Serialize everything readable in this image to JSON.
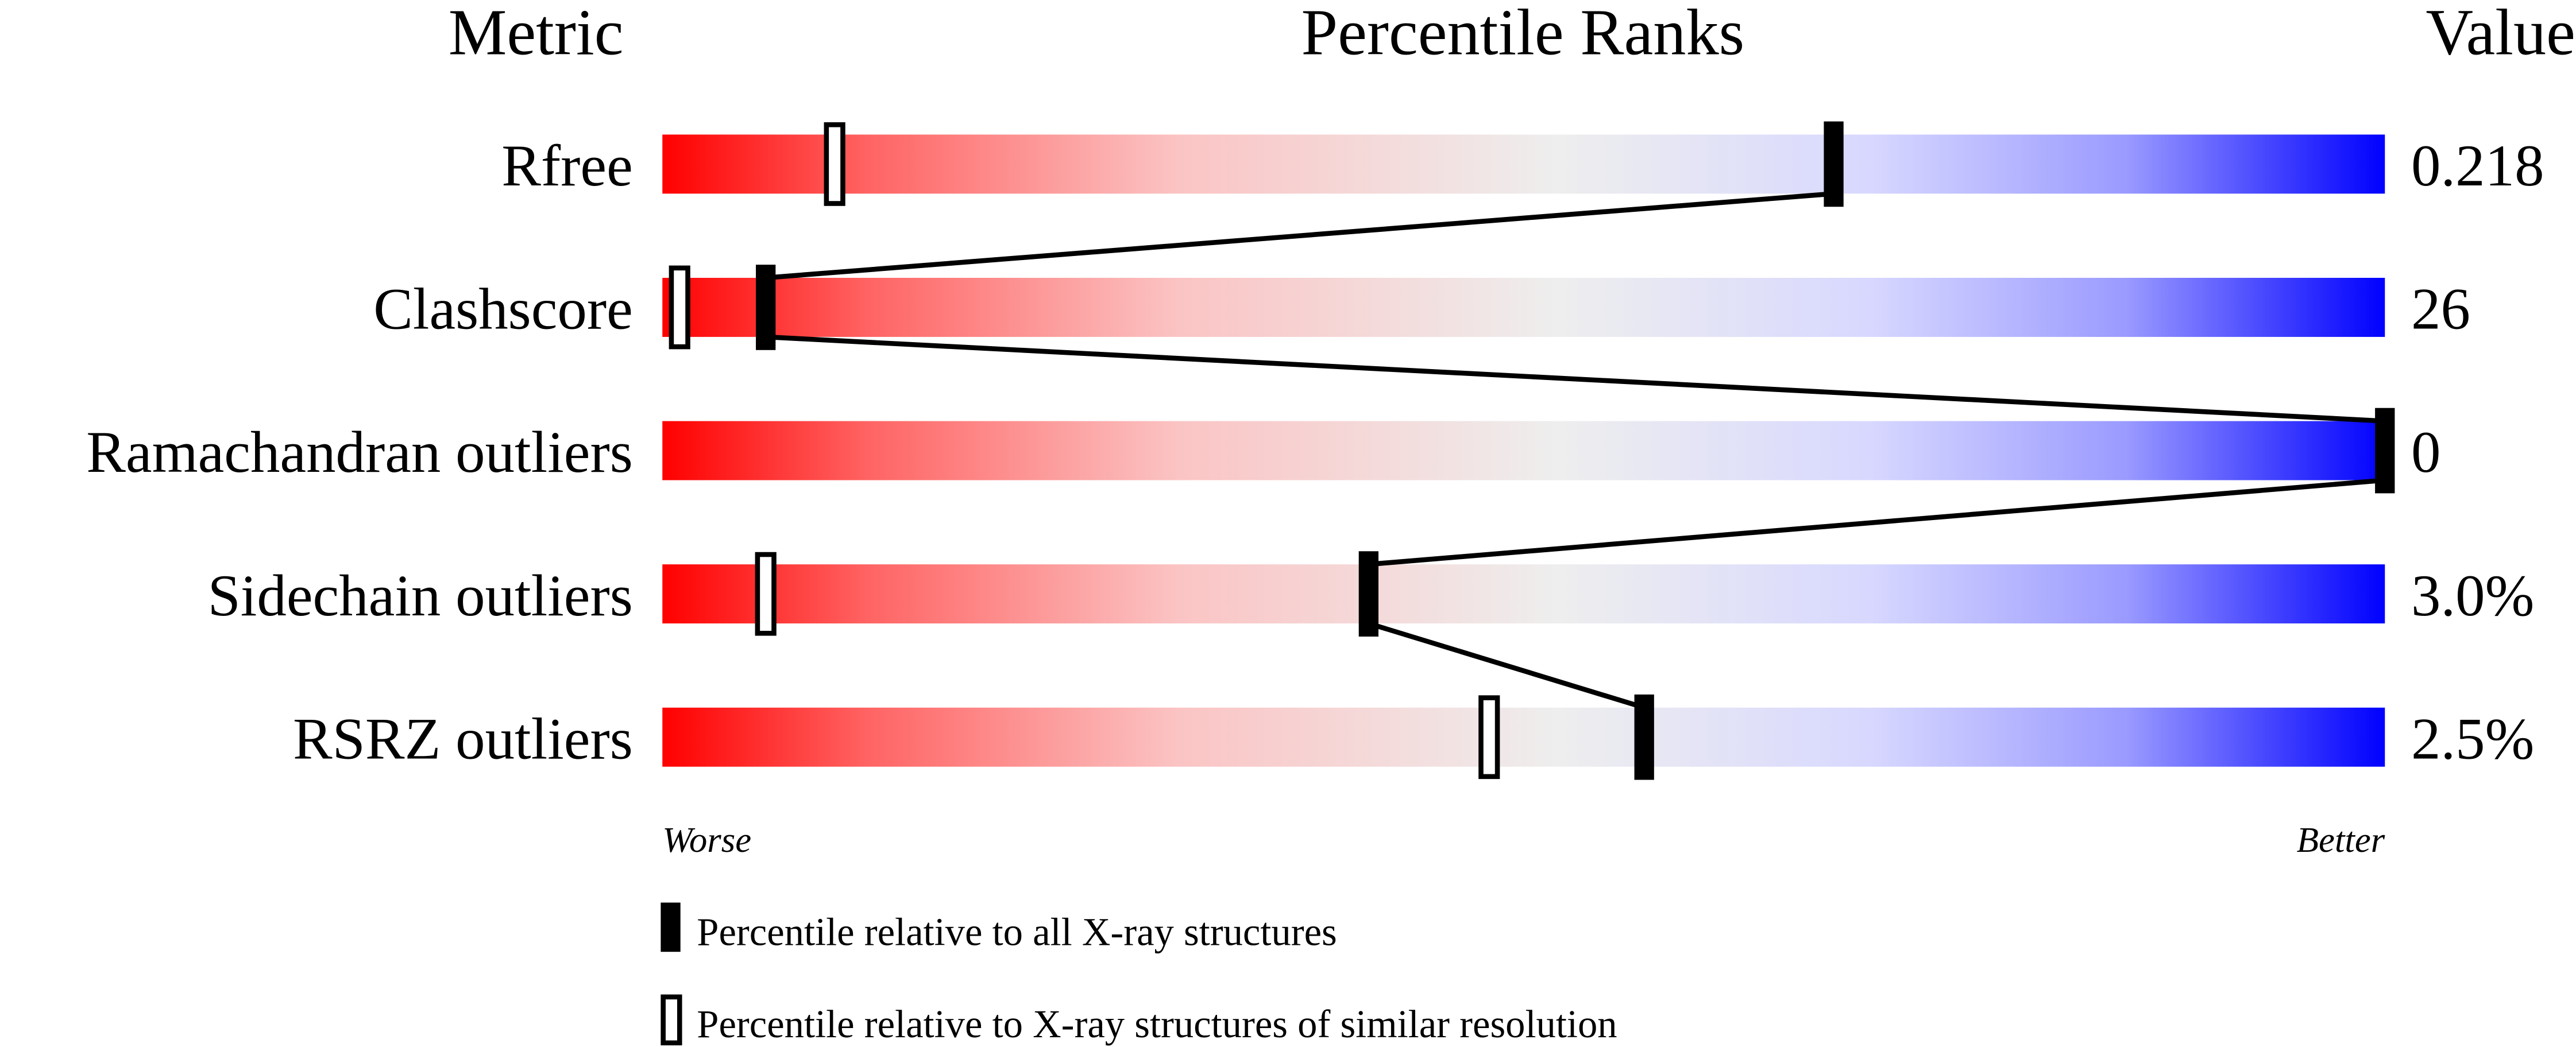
{
  "chart_data": {
    "type": "bar",
    "headers": {
      "metric": "Metric",
      "percentile": "Percentile Ranks",
      "value": "Value"
    },
    "xlim": [
      0,
      100
    ],
    "axis_labels": {
      "left": "Worse",
      "right": "Better"
    },
    "gradient_colors": [
      "#ff0000",
      "#fbd3d3",
      "#eeeeee",
      "#d8d8ff",
      "#0000ff"
    ],
    "metrics": [
      {
        "name": "Rfree",
        "value": "0.218",
        "percentile_all": 68,
        "percentile_similar": 10
      },
      {
        "name": "Clashscore",
        "value": "26",
        "percentile_all": 6,
        "percentile_similar": 1
      },
      {
        "name": "Ramachandran outliers",
        "value": "0",
        "percentile_all": 100,
        "percentile_similar": null
      },
      {
        "name": "Sidechain outliers",
        "value": "3.0%",
        "percentile_all": 41,
        "percentile_similar": 6
      },
      {
        "name": "RSRZ outliers",
        "value": "2.5%",
        "percentile_all": 57,
        "percentile_similar": 48
      }
    ],
    "legend": [
      {
        "marker": "filled",
        "label": "Percentile relative to all X-ray structures"
      },
      {
        "marker": "open",
        "label": "Percentile relative to X-ray structures of similar resolution"
      }
    ],
    "legend_placement": "bottom"
  }
}
